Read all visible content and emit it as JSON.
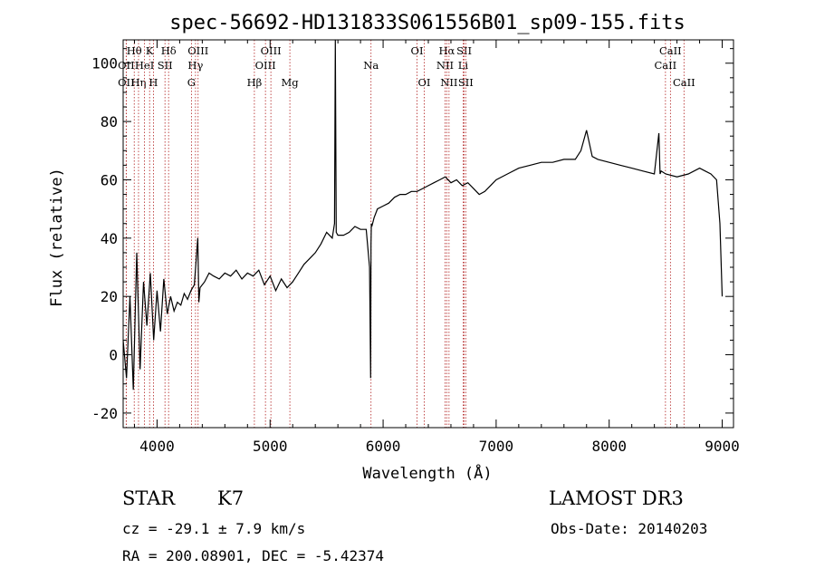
{
  "chart_data": {
    "type": "line",
    "title": "spec-56692-HD131833S061556B01_sp09-155.fits",
    "xlabel": "Wavelength (Å)",
    "ylabel": "Flux (relative)",
    "xlim": [
      3700,
      9100
    ],
    "ylim": [
      -25,
      108
    ],
    "xticks": [
      4000,
      5000,
      6000,
      7000,
      8000,
      9000
    ],
    "yticks": [
      -20,
      0,
      20,
      40,
      60,
      80,
      100
    ],
    "grid": false,
    "series": [
      {
        "name": "flux",
        "x": [
          3700,
          3730,
          3760,
          3790,
          3820,
          3850,
          3880,
          3910,
          3940,
          3970,
          4000,
          4030,
          4060,
          4090,
          4120,
          4150,
          4180,
          4210,
          4240,
          4270,
          4300,
          4330,
          4360,
          4370,
          4380,
          4420,
          4460,
          4500,
          4550,
          4600,
          4650,
          4700,
          4750,
          4800,
          4850,
          4900,
          4950,
          5000,
          5050,
          5100,
          5150,
          5200,
          5250,
          5300,
          5350,
          5400,
          5450,
          5500,
          5550,
          5570,
          5577,
          5585,
          5600,
          5650,
          5700,
          5750,
          5800,
          5850,
          5880,
          5890,
          5893,
          5896,
          5900,
          5920,
          5950,
          6000,
          6050,
          6100,
          6150,
          6200,
          6250,
          6300,
          6350,
          6400,
          6450,
          6500,
          6550,
          6600,
          6650,
          6700,
          6750,
          6800,
          6850,
          6900,
          6950,
          7000,
          7100,
          7200,
          7300,
          7400,
          7500,
          7600,
          7700,
          7750,
          7800,
          7850,
          7900,
          8000,
          8100,
          8200,
          8300,
          8400,
          8440,
          8450,
          8460,
          8500,
          8600,
          8700,
          8800,
          8850,
          8900,
          8950,
          8980,
          9000
        ],
        "y": [
          5,
          -8,
          20,
          -12,
          35,
          -5,
          25,
          10,
          28,
          5,
          22,
          8,
          26,
          14,
          20,
          15,
          18,
          17,
          21,
          19,
          22,
          24,
          40,
          18,
          23,
          25,
          28,
          27,
          26,
          28,
          27,
          29,
          26,
          28,
          27,
          29,
          24,
          27,
          22,
          26,
          23,
          25,
          28,
          31,
          33,
          35,
          38,
          42,
          40,
          45,
          108,
          42,
          41,
          41,
          42,
          44,
          43,
          43,
          30,
          -8,
          38,
          45,
          44,
          47,
          50,
          51,
          52,
          54,
          55,
          55,
          56,
          56,
          57,
          58,
          59,
          60,
          61,
          59,
          60,
          58,
          59,
          57,
          55,
          56,
          58,
          60,
          62,
          64,
          65,
          66,
          66,
          67,
          67,
          70,
          77,
          68,
          67,
          66,
          65,
          64,
          63,
          62,
          76,
          62,
          63,
          62,
          61,
          62,
          64,
          63,
          62,
          60,
          45,
          20
        ]
      }
    ],
    "spectral_lines": [
      {
        "label": "Hθ",
        "x": 3798,
        "row": 0
      },
      {
        "label": "OII",
        "x": 3727,
        "row": 1
      },
      {
        "label": "OII",
        "x": 3727,
        "row": 2
      },
      {
        "label": "Hη",
        "x": 3836,
        "row": 2
      },
      {
        "label": "HeI",
        "x": 3889,
        "row": 1
      },
      {
        "label": "K",
        "x": 3934,
        "row": 0
      },
      {
        "label": "SII",
        "x": 4070,
        "row": 1
      },
      {
        "label": "H",
        "x": 3968,
        "row": 2
      },
      {
        "label": "Hδ",
        "x": 4102,
        "row": 0
      },
      {
        "label": "OIII",
        "x": 4363,
        "row": 0
      },
      {
        "label": "Hγ",
        "x": 4340,
        "row": 1
      },
      {
        "label": "G",
        "x": 4304,
        "row": 2
      },
      {
        "label": "Hβ",
        "x": 4861,
        "row": 2
      },
      {
        "label": "OIII",
        "x": 5007,
        "row": 0
      },
      {
        "label": "OIII",
        "x": 4959,
        "row": 1
      },
      {
        "label": "Mg",
        "x": 5175,
        "row": 2
      },
      {
        "label": "Na",
        "x": 5893,
        "row": 1
      },
      {
        "label": "OI",
        "x": 6300,
        "row": 0
      },
      {
        "label": "OI",
        "x": 6364,
        "row": 2
      },
      {
        "label": "Hα",
        "x": 6563,
        "row": 0
      },
      {
        "label": "NII",
        "x": 6548,
        "row": 1
      },
      {
        "label": "NII",
        "x": 6583,
        "row": 2
      },
      {
        "label": "SII",
        "x": 6717,
        "row": 0
      },
      {
        "label": "Li",
        "x": 6708,
        "row": 1
      },
      {
        "label": "SII",
        "x": 6731,
        "row": 2
      },
      {
        "label": "CaII",
        "x": 8542,
        "row": 0
      },
      {
        "label": "CaII",
        "x": 8498,
        "row": 1
      },
      {
        "label": "CaII",
        "x": 8662,
        "row": 2
      }
    ]
  },
  "info": {
    "object_class": "STAR",
    "subclass": "K7",
    "survey": "LAMOST DR3",
    "redshift": "cz = -29.1 ± 7.9 km/s",
    "obs_date": "Obs-Date: 20140203",
    "coords": "RA = 200.08901, DEC =  -5.42374"
  }
}
